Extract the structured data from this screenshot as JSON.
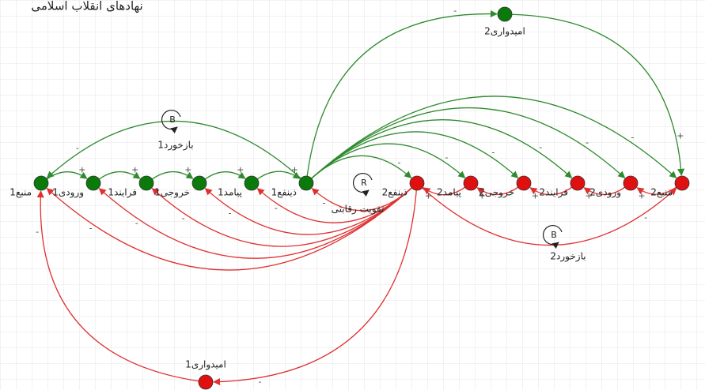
{
  "title": "نهادهای انقلاب اسلامی",
  "nodes": [
    {
      "label": "منبع1",
      "color": "#0a7a0a"
    },
    {
      "label": "ورودی1",
      "color": "#0a7a0a"
    },
    {
      "label": "فرایند1",
      "color": "#0a7a0a"
    },
    {
      "label": "خروجی1",
      "color": "#0a7a0a"
    },
    {
      "label": "پیامد1",
      "color": "#0a7a0a"
    },
    {
      "label": "ذینفع1",
      "color": "#0a7a0a"
    },
    {
      "label": "ذینفع2",
      "color": "#e01010"
    },
    {
      "label": "پیامد2",
      "color": "#e01010"
    },
    {
      "label": "خروجی2",
      "color": "#e01010"
    },
    {
      "label": "فرایند2",
      "color": "#e01010"
    },
    {
      "label": "ورودی2",
      "color": "#e01010"
    },
    {
      "label": "منبع2",
      "color": "#e01010"
    },
    {
      "label": "امیدواری2",
      "color": "#0a7a0a"
    },
    {
      "label": "امیدواری1",
      "color": "#e01010"
    }
  ],
  "loops": [
    {
      "symbol": "B",
      "label": "بازخورد1"
    },
    {
      "symbol": "R",
      "label": "تقویت رقابتی"
    },
    {
      "symbol": "B",
      "label": "بازخورد2"
    }
  ],
  "edges": [
    {
      "from": 0,
      "to": 1,
      "sign": "+",
      "color": "#2e8b2e"
    },
    {
      "from": 1,
      "to": 2,
      "sign": "+",
      "color": "#2e8b2e"
    },
    {
      "from": 2,
      "to": 3,
      "sign": "+",
      "color": "#2e8b2e"
    },
    {
      "from": 3,
      "to": 4,
      "sign": "+",
      "color": "#2e8b2e"
    },
    {
      "from": 4,
      "to": 5,
      "sign": "+",
      "color": "#2e8b2e"
    },
    {
      "from": 5,
      "to": 0,
      "sign": "-",
      "color": "#2e8b2e"
    },
    {
      "from": 5,
      "to": 6,
      "sign": "-",
      "color": "#2e8b2e"
    },
    {
      "from": 5,
      "to": 7,
      "sign": "-",
      "color": "#2e8b2e"
    },
    {
      "from": 5,
      "to": 8,
      "sign": "-",
      "color": "#2e8b2e"
    },
    {
      "from": 5,
      "to": 9,
      "sign": "-",
      "color": "#2e8b2e"
    },
    {
      "from": 5,
      "to": 10,
      "sign": "-",
      "color": "#2e8b2e"
    },
    {
      "from": 5,
      "to": 11,
      "sign": "-",
      "color": "#2e8b2e"
    },
    {
      "from": 5,
      "to": 12,
      "sign": "-",
      "color": "#2e8b2e"
    },
    {
      "from": 12,
      "to": 11,
      "sign": "+",
      "color": "#2e8b2e"
    },
    {
      "from": 11,
      "to": 10,
      "sign": "+",
      "color": "#e03030"
    },
    {
      "from": 10,
      "to": 9,
      "sign": "+",
      "color": "#e03030"
    },
    {
      "from": 9,
      "to": 8,
      "sign": "+",
      "color": "#e03030"
    },
    {
      "from": 8,
      "to": 7,
      "sign": "+",
      "color": "#e03030"
    },
    {
      "from": 7,
      "to": 6,
      "sign": "+",
      "color": "#e03030"
    },
    {
      "from": 6,
      "to": 11,
      "sign": "-",
      "color": "#e03030"
    },
    {
      "from": 6,
      "to": 0,
      "sign": "-",
      "color": "#e03030"
    },
    {
      "from": 6,
      "to": 1,
      "sign": "-",
      "color": "#e03030"
    },
    {
      "from": 6,
      "to": 2,
      "sign": "-",
      "color": "#e03030"
    },
    {
      "from": 6,
      "to": 3,
      "sign": "-",
      "color": "#e03030"
    },
    {
      "from": 6,
      "to": 4,
      "sign": "-",
      "color": "#e03030"
    },
    {
      "from": 6,
      "to": 5,
      "sign": "-",
      "color": "#e03030"
    },
    {
      "from": 6,
      "to": 13,
      "sign": "-",
      "color": "#e03030"
    },
    {
      "from": 13,
      "to": 0,
      "sign": "-",
      "color": "#e03030"
    }
  ]
}
